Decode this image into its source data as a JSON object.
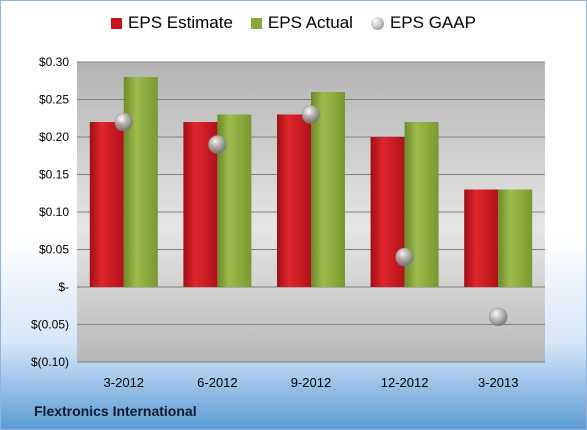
{
  "legend": {
    "estimate": "EPS Estimate",
    "actual": "EPS Actual",
    "gaap": "EPS GAAP"
  },
  "footer": "Flextronics International",
  "colors": {
    "estimate": "#c8141c",
    "actual": "#8aa93a",
    "gaap": "#a0a0a0"
  },
  "chart_data": {
    "type": "bar",
    "categories": [
      "3-2012",
      "6-2012",
      "9-2012",
      "12-2012",
      "3-2013"
    ],
    "series": [
      {
        "name": "EPS Estimate",
        "values": [
          0.22,
          0.22,
          0.23,
          0.2,
          0.13
        ]
      },
      {
        "name": "EPS Actual",
        "values": [
          0.28,
          0.23,
          0.26,
          0.22,
          0.13
        ]
      },
      {
        "name": "EPS GAAP",
        "type": "scatter",
        "values": [
          0.22,
          0.19,
          0.23,
          0.04,
          -0.04
        ]
      }
    ],
    "ylim": [
      -0.1,
      0.3
    ],
    "yticks": [
      0.3,
      0.25,
      0.2,
      0.15,
      0.1,
      0.05,
      0,
      -0.05,
      -0.1
    ],
    "ytick_labels": [
      "$0.30",
      "$0.25",
      "$0.20",
      "$0.15",
      "$0.10",
      "$0.05",
      "$-",
      "$(0.05)",
      "$(0.10)"
    ],
    "grid": true,
    "legend_position": "top"
  }
}
